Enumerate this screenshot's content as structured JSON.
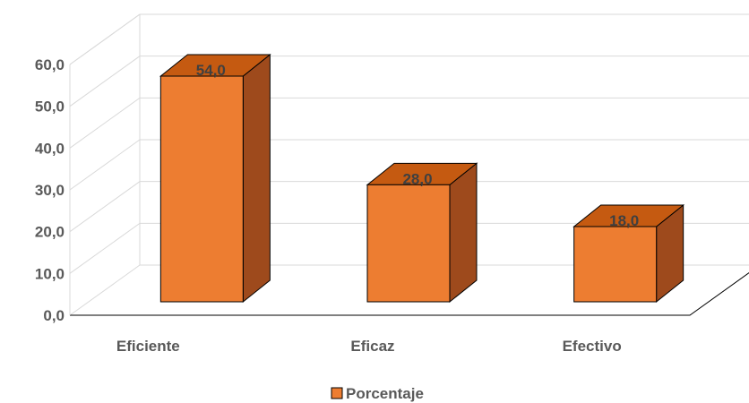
{
  "chart_data": {
    "type": "bar",
    "categories": [
      "Eficiente",
      "Eficaz",
      "Efectivo"
    ],
    "series": [
      {
        "name": "Porcentaje",
        "values": [
          54.0,
          28.0,
          18.0
        ]
      }
    ],
    "data_labels": [
      "54,0",
      "28,0",
      "18,0"
    ],
    "y_ticks": [
      "0,0",
      "10,0",
      "20,0",
      "30,0",
      "40,0",
      "50,0",
      "60,0"
    ],
    "ylim": [
      0,
      60
    ],
    "grid": true,
    "legend_position": "bottom",
    "style": "3d-column",
    "colors": {
      "front": "#ed7d31",
      "top": "#c55a11",
      "side": "#9e4a1c",
      "edge": "#000000"
    }
  }
}
